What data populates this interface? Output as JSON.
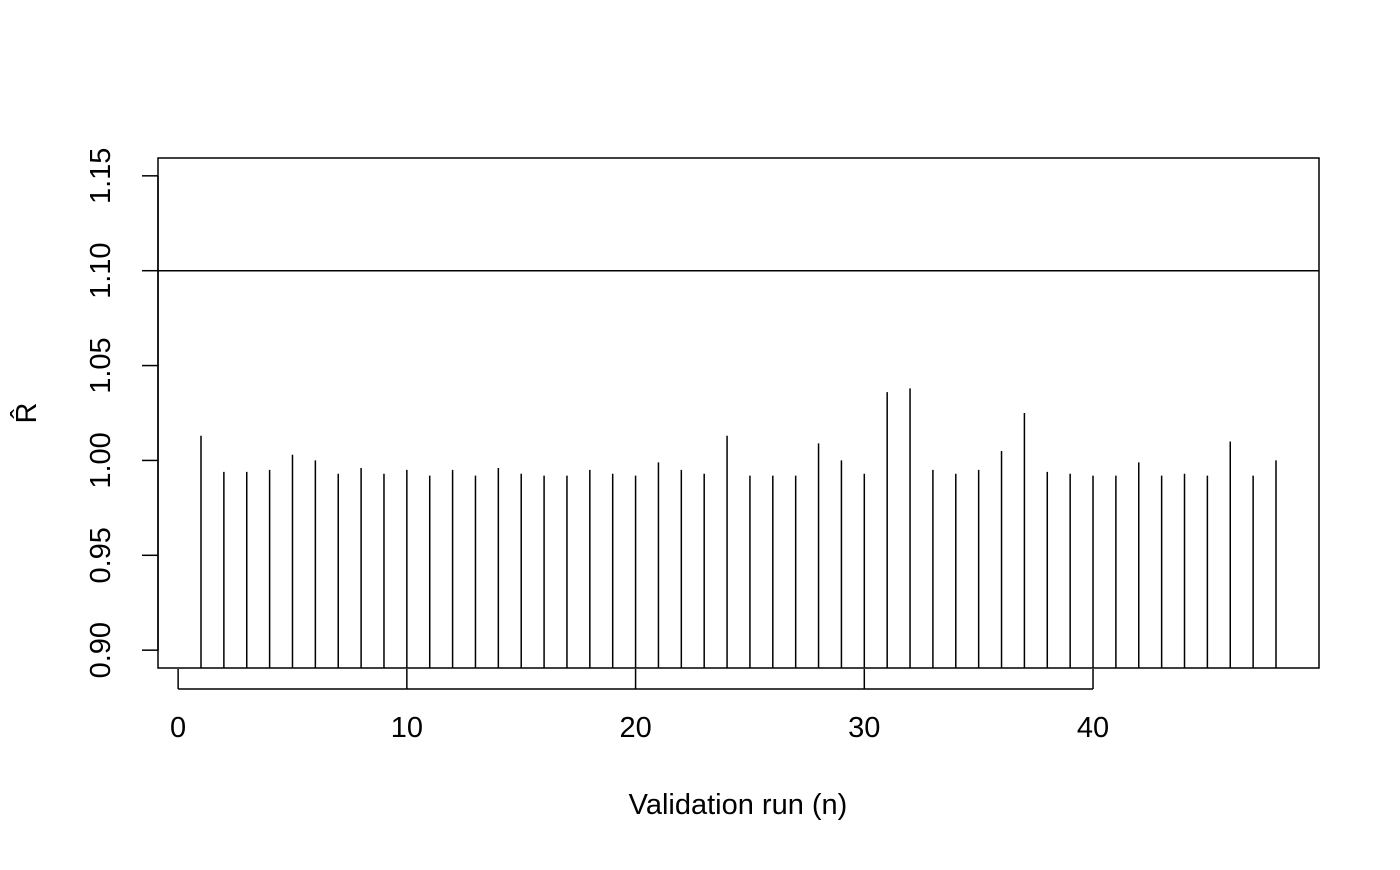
{
  "chart_data": {
    "type": "bar",
    "style": "vertical lines (type h) from axis floor",
    "title": "",
    "xlabel": "Validation run (n)",
    "ylabel": "R̂",
    "xlim": [
      -0.88,
      49.88
    ],
    "ylim": [
      0.8906,
      1.1594
    ],
    "xticks": [
      0,
      10,
      20,
      30,
      40
    ],
    "yticks": [
      0.9,
      0.95,
      1.0,
      1.05,
      1.1,
      1.15
    ],
    "ytick_labels": [
      "0.90",
      "0.95",
      "1.00",
      "1.05",
      "1.10",
      "1.15"
    ],
    "reference_line": 1.1,
    "grid": false,
    "legend": "none",
    "line_color": "#000000",
    "x": [
      1,
      2,
      3,
      4,
      5,
      6,
      7,
      8,
      9,
      10,
      11,
      12,
      13,
      14,
      15,
      16,
      17,
      18,
      19,
      20,
      21,
      22,
      23,
      24,
      25,
      26,
      27,
      28,
      29,
      30,
      31,
      32,
      33,
      34,
      35,
      36,
      37,
      38,
      39,
      40,
      41,
      42,
      43,
      44,
      45,
      46,
      47,
      48
    ],
    "values": [
      1.013,
      0.994,
      0.994,
      0.995,
      1.003,
      1.0,
      0.993,
      0.996,
      0.993,
      0.995,
      0.992,
      0.995,
      0.992,
      0.996,
      0.993,
      0.992,
      0.992,
      0.995,
      0.993,
      0.992,
      0.999,
      0.995,
      0.993,
      1.013,
      0.992,
      0.992,
      0.992,
      1.009,
      1.0,
      0.993,
      1.036,
      1.038,
      0.995,
      0.993,
      0.995,
      1.005,
      1.025,
      0.994,
      0.993,
      0.992,
      0.992,
      0.999,
      0.992,
      0.993,
      0.992,
      1.01,
      0.992,
      1.0
    ]
  }
}
